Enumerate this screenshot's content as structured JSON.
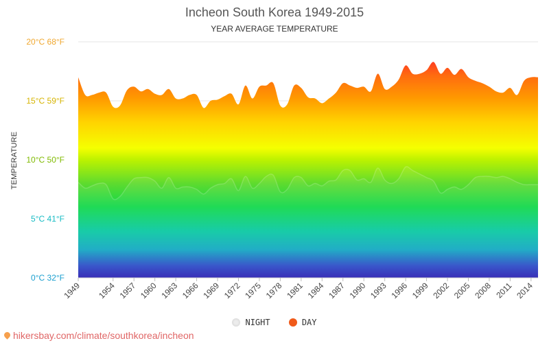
{
  "chart_data": {
    "type": "area",
    "title": "Incheon South Korea 1949-2015",
    "subtitle": "YEAR AVERAGE TEMPERATURE",
    "ylabel": "TEMPERATURE",
    "xlabel": "",
    "ylim": [
      0,
      20
    ],
    "xlim": [
      1949,
      2015
    ],
    "y_ticks": [
      {
        "value": 20,
        "label": "20°C 68°F",
        "color": "#f0a830"
      },
      {
        "value": 15,
        "label": "15°C 59°F",
        "color": "#d6b400"
      },
      {
        "value": 10,
        "label": "10°C 50°F",
        "color": "#7fba00"
      },
      {
        "value": 5,
        "label": "5°C 41°F",
        "color": "#17bcc4"
      },
      {
        "value": 0,
        "label": "0°C 32°F",
        "color": "#1a9fcf"
      }
    ],
    "x_ticks": [
      1949,
      1954,
      1957,
      1960,
      1963,
      1966,
      1969,
      1972,
      1975,
      1978,
      1981,
      1984,
      1987,
      1990,
      1993,
      1996,
      1999,
      2002,
      2005,
      2008,
      2011,
      2014
    ],
    "grid": true,
    "legend_position": "bottom",
    "series": [
      {
        "name": "NIGHT",
        "color": "#dddddd",
        "x": [
          1949,
          1950,
          1951,
          1952,
          1953,
          1954,
          1955,
          1956,
          1957,
          1958,
          1959,
          1960,
          1961,
          1962,
          1963,
          1964,
          1965,
          1966,
          1967,
          1968,
          1969,
          1970,
          1971,
          1972,
          1973,
          1974,
          1975,
          1976,
          1977,
          1978,
          1979,
          1980,
          1981,
          1982,
          1983,
          1984,
          1985,
          1986,
          1987,
          1988,
          1989,
          1990,
          1991,
          1992,
          1993,
          1994,
          1995,
          1996,
          1997,
          1998,
          1999,
          2000,
          2001,
          2002,
          2003,
          2004,
          2005,
          2006,
          2007,
          2008,
          2009,
          2010,
          2011,
          2012,
          2013,
          2014,
          2015
        ],
        "values": [
          8.1,
          7.6,
          7.8,
          8.0,
          7.9,
          6.7,
          6.9,
          7.7,
          8.4,
          8.5,
          8.5,
          8.2,
          7.6,
          8.5,
          7.6,
          7.7,
          7.7,
          7.5,
          7.1,
          7.6,
          7.9,
          8.0,
          8.4,
          7.4,
          8.6,
          7.6,
          8.0,
          8.6,
          8.7,
          7.3,
          7.5,
          8.5,
          8.5,
          7.8,
          8.0,
          7.8,
          8.2,
          8.3,
          9.1,
          9.1,
          8.3,
          8.4,
          8.1,
          9.3,
          8.3,
          8.0,
          8.4,
          9.4,
          9.1,
          8.8,
          8.5,
          8.2,
          7.2,
          7.5,
          7.7,
          7.5,
          7.9,
          8.5,
          8.6,
          8.6,
          8.5,
          8.6,
          8.4,
          8.1,
          7.9,
          7.9,
          7.9
        ]
      },
      {
        "name": "DAY",
        "color": "#f05a1a",
        "x": [
          1949,
          1950,
          1951,
          1952,
          1953,
          1954,
          1955,
          1956,
          1957,
          1958,
          1959,
          1960,
          1961,
          1962,
          1963,
          1964,
          1965,
          1966,
          1967,
          1968,
          1969,
          1970,
          1971,
          1972,
          1973,
          1974,
          1975,
          1976,
          1977,
          1978,
          1979,
          1980,
          1981,
          1982,
          1983,
          1984,
          1985,
          1986,
          1987,
          1988,
          1989,
          1990,
          1991,
          1992,
          1993,
          1994,
          1995,
          1996,
          1997,
          1998,
          1999,
          2000,
          2001,
          2002,
          2003,
          2004,
          2005,
          2006,
          2007,
          2008,
          2009,
          2010,
          2011,
          2012,
          2013,
          2014,
          2015
        ],
        "values": [
          17.0,
          15.5,
          15.5,
          15.7,
          15.7,
          14.5,
          14.6,
          15.9,
          16.2,
          15.8,
          16.0,
          15.6,
          15.5,
          16.0,
          15.2,
          15.2,
          15.5,
          15.5,
          14.4,
          15.0,
          15.1,
          15.4,
          15.6,
          14.7,
          16.3,
          15.2,
          16.2,
          16.3,
          16.5,
          14.6,
          14.7,
          16.3,
          16.1,
          15.3,
          15.2,
          14.8,
          15.2,
          15.7,
          16.5,
          16.3,
          16.1,
          16.2,
          15.8,
          17.3,
          16.0,
          16.2,
          16.8,
          18.0,
          17.3,
          17.3,
          17.6,
          18.3,
          17.3,
          17.8,
          17.2,
          17.7,
          17.0,
          16.7,
          16.5,
          16.2,
          15.8,
          15.7,
          16.1,
          15.5,
          16.7,
          17.0,
          17.0
        ]
      }
    ]
  },
  "footer": {
    "text": "hikersbay.com/climate/southkorea/incheon"
  }
}
